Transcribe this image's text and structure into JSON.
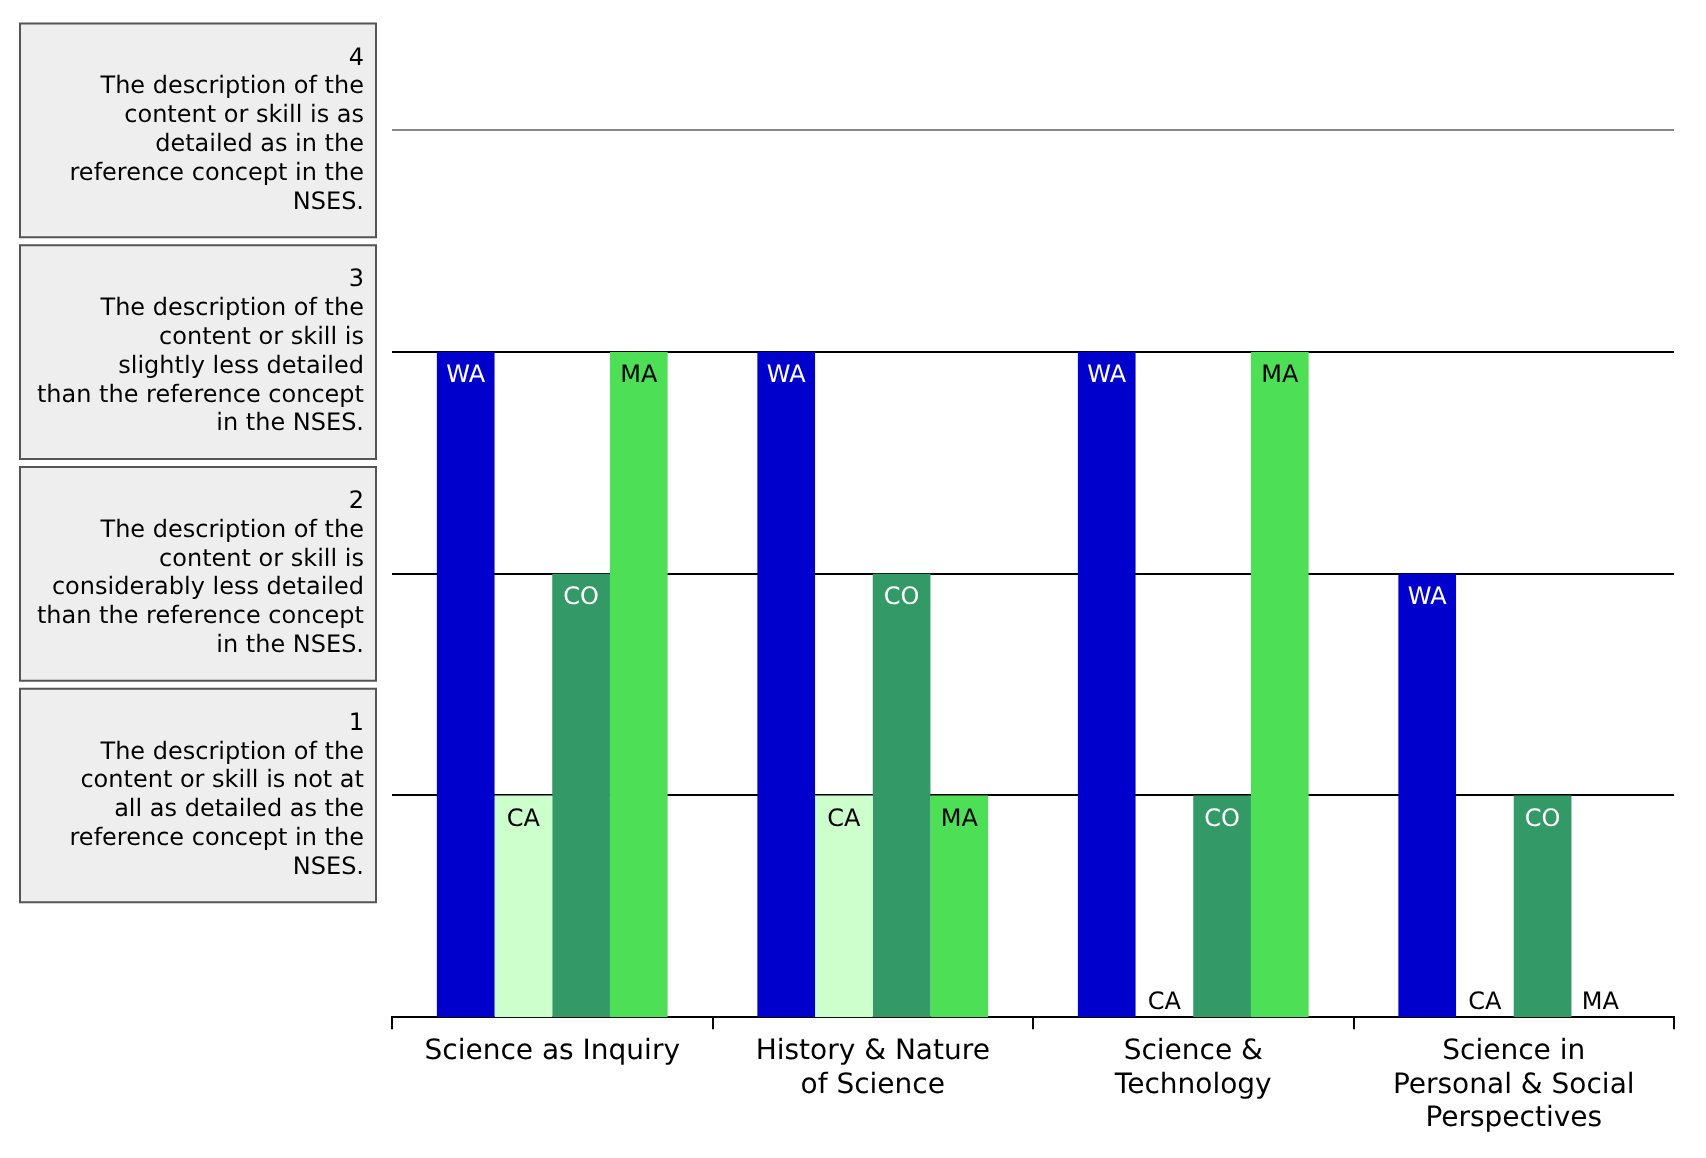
{
  "chart_data": {
    "type": "bar",
    "categories": [
      "Science as Inquiry",
      "History & Nature of Science",
      "Science & Technology",
      "Science in Personal & Social Perspectives"
    ],
    "series": [
      {
        "name": "WA",
        "color": "#0000cc",
        "values": [
          3,
          3,
          3,
          2
        ]
      },
      {
        "name": "CA",
        "color": "#ccffcc",
        "values": [
          1,
          1,
          0,
          0
        ]
      },
      {
        "name": "CO",
        "color": "#339966",
        "values": [
          2,
          2,
          1,
          1
        ]
      },
      {
        "name": "MA",
        "color": "#4ddf55",
        "values": [
          3,
          1,
          3,
          0
        ]
      }
    ],
    "ylim": [
      0,
      4
    ],
    "yticks": [
      {
        "value": 1,
        "label": "1\nThe description of the content or skill is not at all as detailed as the reference concept in the NSES."
      },
      {
        "value": 2,
        "label": "2\nThe description of the content or skill is considerably less detailed than the reference concept in the NSES."
      },
      {
        "value": 3,
        "label": "3\nThe description of the content or skill is slightly less detailed than the reference concept in the NSES."
      },
      {
        "value": 4,
        "label": "4\nThe description of the content or skill is as detailed as in the reference concept in the NSES."
      }
    ],
    "grid": "y"
  }
}
